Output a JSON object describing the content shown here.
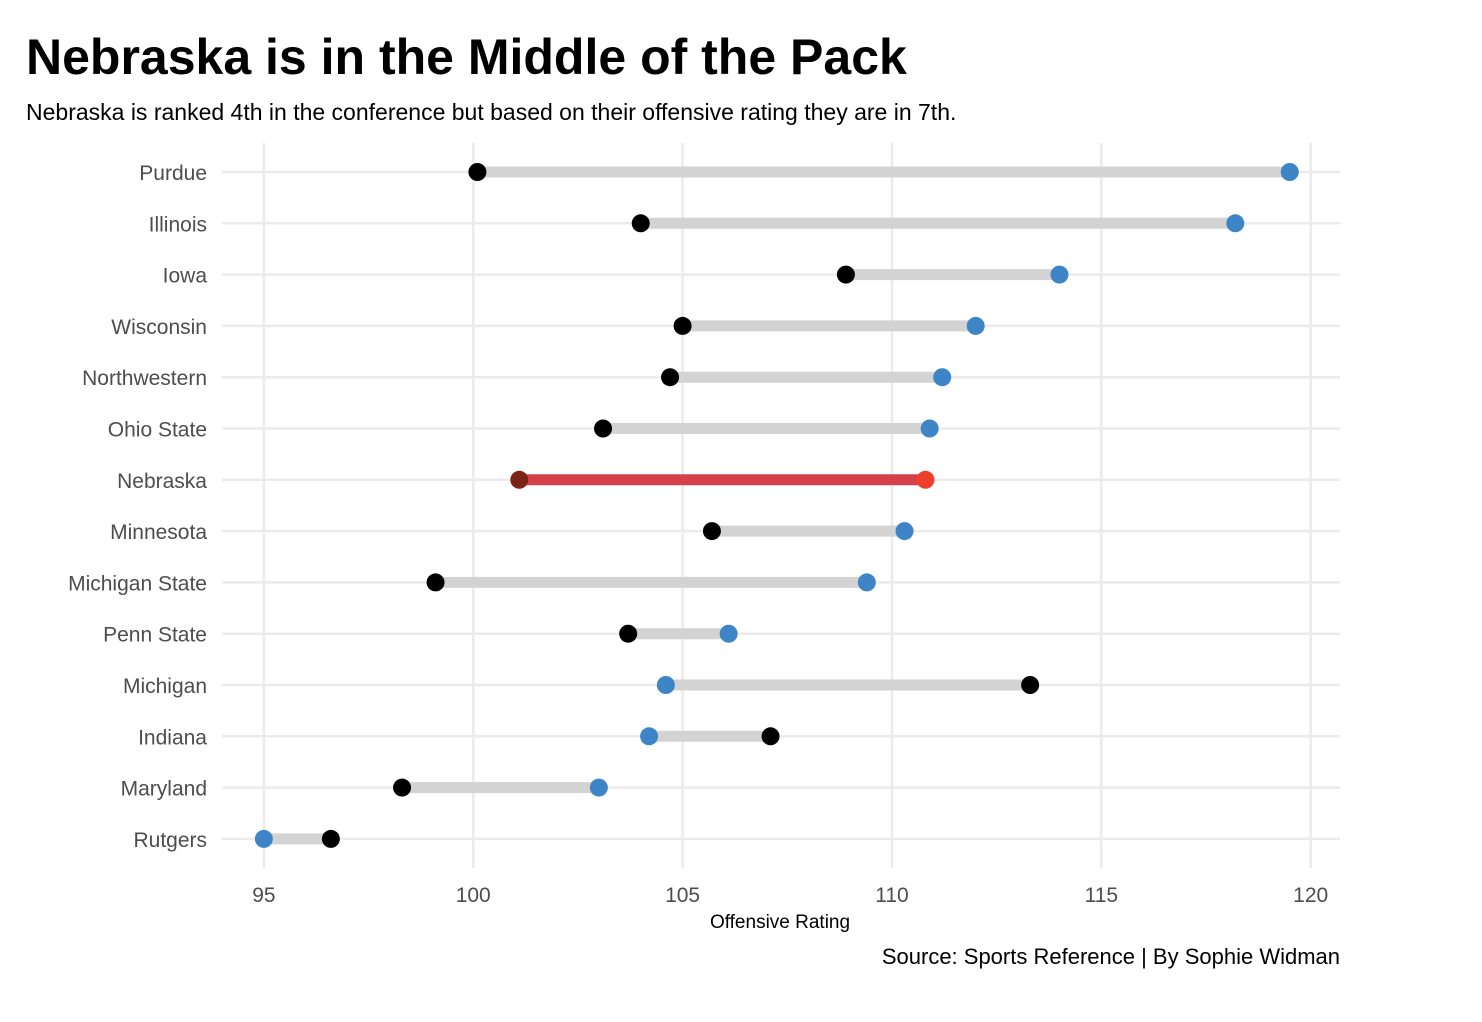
{
  "chart_data": {
    "type": "dumbbell",
    "title": "Nebraska is in the Middle of the Pack",
    "subtitle": "Nebraska is ranked 4th in the conference but based on their offensive rating they are in 7th.",
    "xlabel": "Offensive Rating",
    "caption": "Source: Sports Reference | By Sophie Widman",
    "xlim": [
      94,
      120.7
    ],
    "x_ticks": [
      95,
      100,
      105,
      110,
      115,
      120
    ],
    "grid": true,
    "highlight": "Nebraska",
    "colors": {
      "segment": "#d3d3d3",
      "point_a": "#000000",
      "point_b": "#3d85c6",
      "highlight_segment": "#d6404a",
      "highlight_point_a": "#7a2418",
      "highlight_point_b": "#ee3f2b",
      "grid": "#ebebeb"
    },
    "teams": [
      {
        "name": "Purdue",
        "a": 100.1,
        "b": 119.5
      },
      {
        "name": "Illinois",
        "a": 104.0,
        "b": 118.2
      },
      {
        "name": "Iowa",
        "a": 108.9,
        "b": 114.0
      },
      {
        "name": "Wisconsin",
        "a": 105.0,
        "b": 112.0
      },
      {
        "name": "Northwestern",
        "a": 104.7,
        "b": 111.2
      },
      {
        "name": "Ohio State",
        "a": 103.1,
        "b": 110.9
      },
      {
        "name": "Nebraska",
        "a": 101.1,
        "b": 110.8
      },
      {
        "name": "Minnesota",
        "a": 105.7,
        "b": 110.3
      },
      {
        "name": "Michigan State",
        "a": 99.1,
        "b": 109.4
      },
      {
        "name": "Penn State",
        "a": 103.7,
        "b": 106.1
      },
      {
        "name": "Michigan",
        "a": 113.3,
        "b": 104.6
      },
      {
        "name": "Indiana",
        "a": 107.1,
        "b": 104.2
      },
      {
        "name": "Maryland",
        "a": 98.3,
        "b": 103.0
      },
      {
        "name": "Rutgers",
        "a": 96.6,
        "b": 95.0
      }
    ]
  }
}
